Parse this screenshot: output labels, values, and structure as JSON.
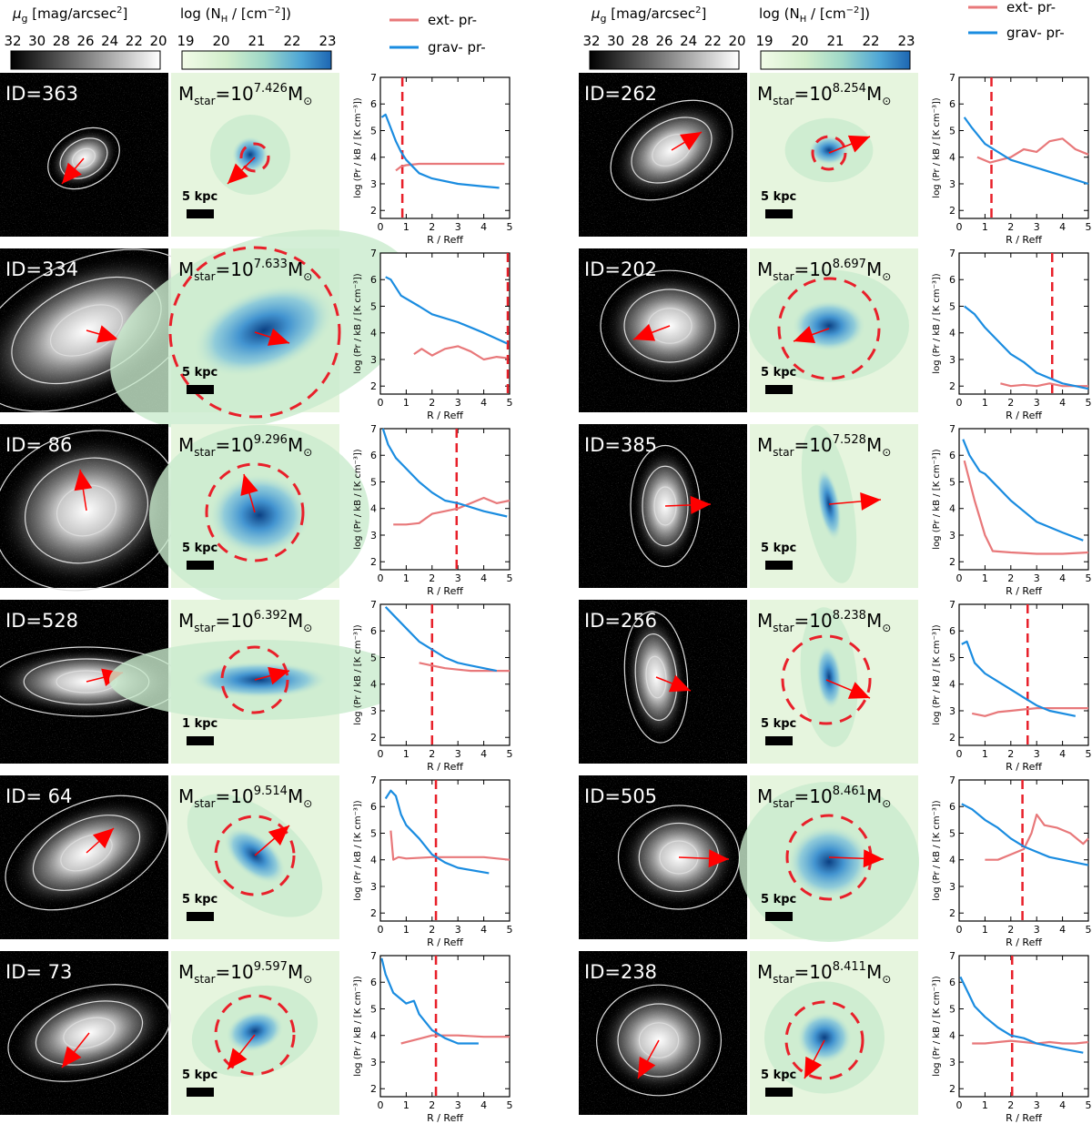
{
  "header": {
    "mu_label": "μg [mag/arcsec²]",
    "mu_ticks": [
      "32",
      "30",
      "28",
      "26",
      "24",
      "22",
      "20"
    ],
    "nh_label": "log (NH / [cm⁻²])",
    "nh_ticks": [
      "19",
      "20",
      "21",
      "22",
      "23"
    ],
    "legend": [
      {
        "label": "ext- pr-",
        "color": "#e8787a"
      },
      {
        "label": "grav- pr-",
        "color": "#1a8ce0"
      }
    ]
  },
  "axes": {
    "xlabel": "R / Reff",
    "ylabel": "log (Pr / kB / [K cm⁻³])",
    "xticks": [
      "0",
      "1",
      "2",
      "3",
      "4",
      "5"
    ],
    "yticks": [
      "2",
      "3",
      "4",
      "5",
      "6",
      "7"
    ]
  },
  "colors": {
    "ext": "#e8787a",
    "grav": "#1a8ce0",
    "arrow": "#ff0000",
    "circle": "#e8202a"
  },
  "panels": [
    {
      "id": "ID=363",
      "mstar": "Mstar=10^7.426M⊙",
      "scale": "5 kpc"
    },
    {
      "id": "ID=334",
      "mstar": "Mstar=10^7.633M⊙",
      "scale": "5 kpc"
    },
    {
      "id": "ID= 86",
      "mstar": "Mstar=10^9.296M⊙",
      "scale": "5 kpc"
    },
    {
      "id": "ID=528",
      "mstar": "Mstar=10^6.392M⊙",
      "scale": "1 kpc"
    },
    {
      "id": "ID= 64",
      "mstar": "Mstar=10^9.514M⊙",
      "scale": "5 kpc"
    },
    {
      "id": "ID= 73",
      "mstar": "Mstar=10^9.597M⊙",
      "scale": "5 kpc"
    },
    {
      "id": "ID=262",
      "mstar": "Mstar=10^8.254M⊙",
      "scale": "5 kpc"
    },
    {
      "id": "ID=202",
      "mstar": "Mstar=10^8.697M⊙",
      "scale": "5 kpc"
    },
    {
      "id": "ID=385",
      "mstar": "Mstar=10^7.528M⊙",
      "scale": "5 kpc"
    },
    {
      "id": "ID=256",
      "mstar": "Mstar=10^8.238M⊙",
      "scale": "5 kpc"
    },
    {
      "id": "ID=505",
      "mstar": "Mstar=10^8.461M⊙",
      "scale": "5 kpc"
    },
    {
      "id": "ID=238",
      "mstar": "Mstar=10^8.411M⊙",
      "scale": "5 kpc"
    }
  ],
  "chart_data": [
    {
      "type": "line",
      "panel": "ID=363",
      "xlabel": "R / Reff",
      "ylabel": "log (Pr / kB / [K cm⁻³])",
      "xlim": [
        0,
        5
      ],
      "ylim": [
        1.7,
        7
      ],
      "vline": 0.85,
      "series": [
        {
          "name": "ext- pr-",
          "x": [
            0.6,
            0.8,
            1.0,
            1.5,
            2.5,
            3.5,
            4.8
          ],
          "y": [
            3.5,
            3.65,
            3.7,
            3.75,
            3.75,
            3.75,
            3.75
          ]
        },
        {
          "name": "grav- pr-",
          "x": [
            0.05,
            0.2,
            0.4,
            0.6,
            0.8,
            1.0,
            1.5,
            2.0,
            3.0,
            4.0,
            4.6
          ],
          "y": [
            5.5,
            5.6,
            5.1,
            4.6,
            4.2,
            3.9,
            3.4,
            3.2,
            3.0,
            2.9,
            2.85
          ]
        }
      ]
    },
    {
      "type": "line",
      "panel": "ID=334",
      "xlabel": "R / Reff",
      "ylabel": "log (Pr / kB / [K cm⁻³])",
      "xlim": [
        0,
        5
      ],
      "ylim": [
        1.7,
        7
      ],
      "vline": 4.93,
      "series": [
        {
          "name": "ext- pr-",
          "x": [
            1.3,
            1.6,
            2.0,
            2.5,
            3.0,
            3.5,
            4.0,
            4.5,
            4.9
          ],
          "y": [
            3.2,
            3.4,
            3.15,
            3.4,
            3.5,
            3.3,
            3.0,
            3.1,
            3.05
          ]
        },
        {
          "name": "grav- pr-",
          "x": [
            0.2,
            0.4,
            0.8,
            1.5,
            2.0,
            3.0,
            4.0,
            4.9
          ],
          "y": [
            6.1,
            6.0,
            5.4,
            5.0,
            4.7,
            4.4,
            4.0,
            3.6
          ]
        }
      ]
    },
    {
      "type": "line",
      "panel": "ID= 86",
      "xlabel": "R / Reff",
      "ylabel": "log (Pr / kB / [K cm⁻³])",
      "xlim": [
        0,
        5
      ],
      "ylim": [
        1.7,
        7
      ],
      "vline": 2.95,
      "series": [
        {
          "name": "ext- pr-",
          "x": [
            0.5,
            1.0,
            1.5,
            2.0,
            2.5,
            3.0,
            3.5,
            4.0,
            4.5,
            5.0
          ],
          "y": [
            3.4,
            3.4,
            3.45,
            3.8,
            3.9,
            4.0,
            4.2,
            4.4,
            4.2,
            4.3
          ]
        },
        {
          "name": "grav- pr-",
          "x": [
            0.1,
            0.3,
            0.6,
            1.0,
            1.5,
            2.0,
            2.5,
            3.0,
            4.0,
            4.9
          ],
          "y": [
            7.0,
            6.4,
            5.9,
            5.5,
            5.0,
            4.6,
            4.3,
            4.2,
            3.9,
            3.7
          ]
        }
      ]
    },
    {
      "type": "line",
      "panel": "ID=528",
      "xlabel": "R / Reff",
      "ylabel": "log (Pr / kB / [K cm⁻³])",
      "xlim": [
        0,
        5
      ],
      "ylim": [
        1.7,
        7
      ],
      "vline": 2.0,
      "series": [
        {
          "name": "ext- pr-",
          "x": [
            1.5,
            2.0,
            2.5,
            3.0,
            3.5,
            4.0,
            4.5,
            5.0
          ],
          "y": [
            4.8,
            4.7,
            4.6,
            4.55,
            4.5,
            4.5,
            4.5,
            4.5
          ]
        },
        {
          "name": "grav- pr-",
          "x": [
            0.2,
            0.5,
            1.0,
            1.5,
            2.0,
            2.5,
            3.0,
            3.5,
            4.0,
            4.5
          ],
          "y": [
            6.9,
            6.6,
            6.1,
            5.6,
            5.3,
            5.0,
            4.8,
            4.7,
            4.6,
            4.5
          ]
        }
      ]
    },
    {
      "type": "line",
      "panel": "ID= 64",
      "xlabel": "R / Reff",
      "ylabel": "log (Pr / kB / [K cm⁻³])",
      "xlim": [
        0,
        5
      ],
      "ylim": [
        1.7,
        7
      ],
      "vline": 2.15,
      "series": [
        {
          "name": "ext- pr-",
          "x": [
            0.4,
            0.5,
            0.7,
            1.0,
            2.0,
            3.0,
            4.0,
            5.0
          ],
          "y": [
            5.1,
            4.0,
            4.1,
            4.05,
            4.1,
            4.1,
            4.1,
            4.0
          ]
        },
        {
          "name": "grav- pr-",
          "x": [
            0.2,
            0.4,
            0.6,
            0.8,
            1.0,
            1.5,
            2.0,
            2.5,
            3.0,
            4.2
          ],
          "y": [
            6.3,
            6.6,
            6.4,
            5.7,
            5.3,
            4.8,
            4.2,
            3.9,
            3.7,
            3.5
          ]
        }
      ]
    },
    {
      "type": "line",
      "panel": "ID= 73",
      "xlabel": "R / Reff",
      "ylabel": "log (Pr / kB / [K cm⁻³])",
      "xlim": [
        0,
        5
      ],
      "ylim": [
        1.7,
        7
      ],
      "vline": 2.15,
      "series": [
        {
          "name": "ext- pr-",
          "x": [
            0.8,
            1.2,
            1.6,
            2.0,
            2.5,
            3.0,
            4.0,
            5.0
          ],
          "y": [
            3.7,
            3.8,
            3.9,
            4.0,
            4.0,
            4.0,
            3.95,
            3.95
          ]
        },
        {
          "name": "grav- pr-",
          "x": [
            0.05,
            0.2,
            0.5,
            1.0,
            1.3,
            1.5,
            2.0,
            2.5,
            3.0,
            3.8
          ],
          "y": [
            6.9,
            6.3,
            5.6,
            5.2,
            5.3,
            4.8,
            4.2,
            3.9,
            3.7,
            3.7
          ]
        }
      ]
    },
    {
      "type": "line",
      "panel": "ID=262",
      "xlabel": "R / Reff",
      "ylabel": "log (Pr / kB / [K cm⁻³])",
      "xlim": [
        0,
        5
      ],
      "ylim": [
        1.7,
        7
      ],
      "vline": 1.25,
      "series": [
        {
          "name": "ext- pr-",
          "x": [
            0.7,
            1.2,
            2.0,
            2.5,
            3.0,
            3.5,
            4.0,
            4.5,
            5.0
          ],
          "y": [
            4.0,
            3.8,
            4.0,
            4.3,
            4.2,
            4.6,
            4.7,
            4.3,
            4.1
          ]
        },
        {
          "name": "grav- pr-",
          "x": [
            0.2,
            0.5,
            1.0,
            1.5,
            2.0,
            3.0,
            4.0,
            5.0
          ],
          "y": [
            5.5,
            5.1,
            4.5,
            4.2,
            3.9,
            3.6,
            3.3,
            3.0
          ]
        }
      ]
    },
    {
      "type": "line",
      "panel": "ID=202",
      "xlabel": "R / Reff",
      "ylabel": "log (Pr / kB / [K cm⁻³])",
      "xlim": [
        0,
        5
      ],
      "ylim": [
        1.7,
        7
      ],
      "vline": 3.6,
      "series": [
        {
          "name": "ext- pr-",
          "x": [
            1.6,
            2.0,
            2.5,
            3.0,
            3.5,
            4.0,
            4.5,
            5.0
          ],
          "y": [
            2.1,
            2.0,
            2.05,
            2.0,
            2.1,
            2.0,
            2.0,
            2.0
          ]
        },
        {
          "name": "grav- pr-",
          "x": [
            0.2,
            0.6,
            1.0,
            1.5,
            2.0,
            2.5,
            3.0,
            3.5,
            4.0,
            4.5,
            5.0
          ],
          "y": [
            5.0,
            4.7,
            4.2,
            3.7,
            3.2,
            2.9,
            2.5,
            2.3,
            2.1,
            2.0,
            1.9
          ]
        }
      ]
    },
    {
      "type": "line",
      "panel": "ID=385",
      "xlabel": "R / Reff",
      "ylabel": "log (Pr / kB / [K cm⁻³])",
      "xlim": [
        0,
        5
      ],
      "ylim": [
        1.7,
        7
      ],
      "series": [
        {
          "name": "ext- pr-",
          "x": [
            0.2,
            0.6,
            1.0,
            1.3,
            2.0,
            3.0,
            4.0,
            5.0
          ],
          "y": [
            5.8,
            4.3,
            3.0,
            2.4,
            2.35,
            2.3,
            2.3,
            2.35
          ]
        },
        {
          "name": "grav- pr-",
          "x": [
            0.15,
            0.4,
            0.8,
            1.0,
            1.5,
            2.0,
            2.5,
            3.0,
            4.0,
            4.8
          ],
          "y": [
            6.6,
            6.0,
            5.4,
            5.3,
            4.8,
            4.3,
            3.9,
            3.5,
            3.1,
            2.8
          ]
        }
      ]
    },
    {
      "type": "line",
      "panel": "ID=256",
      "xlabel": "R / Reff",
      "ylabel": "log (Pr / kB / [K cm⁻³])",
      "xlim": [
        0,
        5
      ],
      "ylim": [
        1.7,
        7
      ],
      "vline": 2.65,
      "series": [
        {
          "name": "ext- pr-",
          "x": [
            0.5,
            1.0,
            1.5,
            2.0,
            2.5,
            3.0,
            3.5,
            4.0,
            4.5,
            5.0
          ],
          "y": [
            2.9,
            2.8,
            2.95,
            3.0,
            3.05,
            3.1,
            3.1,
            3.1,
            3.1,
            3.1
          ]
        },
        {
          "name": "grav- pr-",
          "x": [
            0.1,
            0.3,
            0.6,
            1.0,
            1.5,
            2.0,
            2.5,
            3.0,
            3.5,
            4.5
          ],
          "y": [
            5.5,
            5.6,
            4.8,
            4.4,
            4.1,
            3.8,
            3.5,
            3.2,
            3.0,
            2.8
          ]
        }
      ]
    },
    {
      "type": "line",
      "panel": "ID=505",
      "xlabel": "R / Reff",
      "ylabel": "log (Pr / kB / [K cm⁻³])",
      "xlim": [
        0,
        5
      ],
      "ylim": [
        1.7,
        7
      ],
      "vline": 2.45,
      "series": [
        {
          "name": "ext- pr-",
          "x": [
            1.0,
            1.5,
            2.0,
            2.5,
            2.8,
            3.0,
            3.3,
            3.8,
            4.3,
            4.8,
            5.0
          ],
          "y": [
            4.0,
            4.0,
            4.2,
            4.4,
            5.0,
            5.7,
            5.3,
            5.2,
            5.0,
            4.6,
            4.8
          ]
        },
        {
          "name": "grav- pr-",
          "x": [
            0.1,
            0.5,
            1.0,
            1.5,
            2.0,
            2.5,
            3.0,
            3.5,
            4.0,
            4.5,
            5.0
          ],
          "y": [
            6.1,
            5.9,
            5.5,
            5.2,
            4.8,
            4.5,
            4.3,
            4.1,
            4.0,
            3.9,
            3.8
          ]
        }
      ]
    },
    {
      "type": "line",
      "panel": "ID=238",
      "xlabel": "R / Reff",
      "ylabel": "log (Pr / kB / [K cm⁻³])",
      "xlim": [
        0,
        5
      ],
      "ylim": [
        1.7,
        7
      ],
      "vline": 2.05,
      "series": [
        {
          "name": "ext- pr-",
          "x": [
            0.5,
            1.0,
            1.5,
            2.0,
            2.5,
            3.0,
            3.5,
            4.0,
            4.5,
            5.0
          ],
          "y": [
            3.7,
            3.7,
            3.75,
            3.8,
            3.75,
            3.7,
            3.75,
            3.7,
            3.7,
            3.75
          ]
        },
        {
          "name": "grav- pr-",
          "x": [
            0.05,
            0.3,
            0.6,
            1.0,
            1.5,
            2.0,
            2.5,
            3.0,
            3.5,
            4.0,
            4.8
          ],
          "y": [
            6.2,
            5.7,
            5.1,
            4.7,
            4.3,
            4.0,
            3.9,
            3.7,
            3.6,
            3.5,
            3.35
          ]
        }
      ]
    }
  ]
}
